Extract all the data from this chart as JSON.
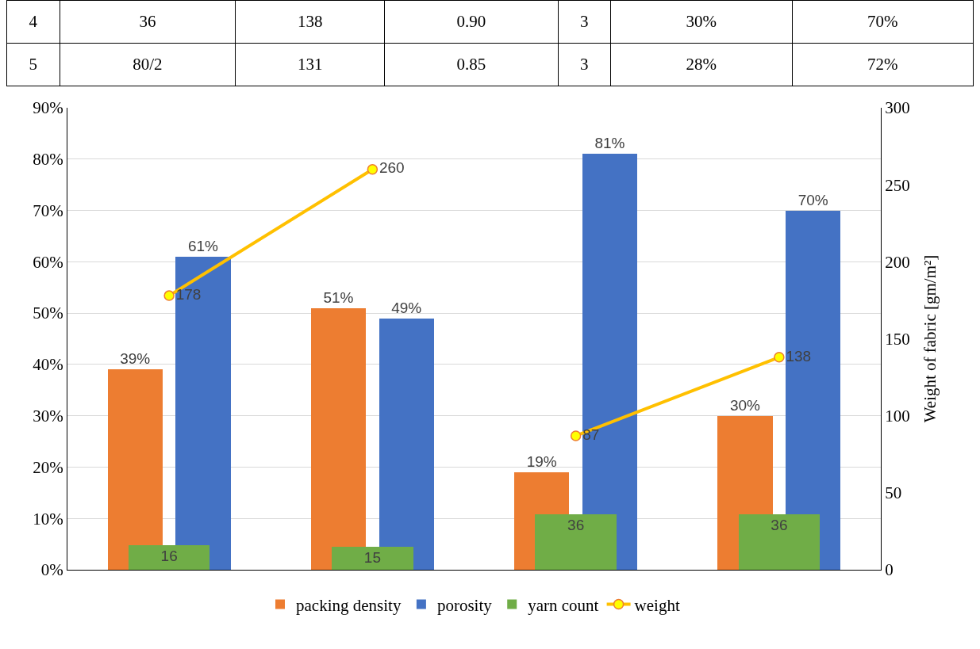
{
  "chart_data": [
    {
      "type": "other",
      "annotations": [
        "4",
        "36",
        "138",
        "0.90",
        "3",
        "30%",
        "70%",
        "5",
        "80/2",
        "131",
        "0.85",
        "3",
        "28%",
        "72%"
      ]
    },
    {
      "type": "bar",
      "categories": [
        null,
        null,
        null,
        null
      ],
      "y2label": "Weight of fabric [gm/m²]",
      "ylim": [
        0,
        90
      ],
      "yticks": [
        {
          "value": 0,
          "label": "0%"
        },
        {
          "value": 10,
          "label": "10%"
        },
        {
          "value": 20,
          "label": "20%"
        },
        {
          "value": 30,
          "label": "30%"
        },
        {
          "value": 40,
          "label": "40%"
        },
        {
          "value": 50,
          "label": "50%"
        },
        {
          "value": 60,
          "label": "60%"
        },
        {
          "value": 70,
          "label": "70%"
        },
        {
          "value": 80,
          "label": "80%"
        },
        {
          "value": 90,
          "label": "90%"
        }
      ],
      "y2lim": [
        0,
        300
      ],
      "y2ticks": [
        0,
        50,
        100,
        150,
        200,
        250,
        300
      ],
      "grid": "y",
      "legend": "bottom",
      "marker": "circle",
      "line_style": "solid",
      "series": [
        {
          "name": "packing density",
          "type": "bar",
          "color": "#ed7d31",
          "values": [
            39,
            51,
            19,
            30
          ],
          "value_labels": [
            "39%",
            "51%",
            "19%",
            "30%"
          ]
        },
        {
          "name": "porosity",
          "type": "bar",
          "color": "#4472c4",
          "values": [
            61,
            49,
            81,
            70
          ],
          "value_labels": [
            "61%",
            "49%",
            "81%",
            "70%"
          ]
        },
        {
          "name": "yarn count",
          "type": "bar",
          "axis": "y2",
          "color": "#70ad47",
          "values": [
            16,
            15,
            36,
            36
          ],
          "value_labels": [
            "16",
            "15",
            "36",
            "36"
          ]
        },
        {
          "name": "weight",
          "type": "line",
          "axis": "y2",
          "color": "#ffc000",
          "values": [
            178,
            260,
            null,
            null
          ],
          "value_labels": [
            "178",
            "260",
            null,
            null
          ]
        },
        {
          "type": "line",
          "axis": "y2",
          "color": "#ffc000",
          "values": [
            null,
            null,
            87,
            138
          ],
          "value_labels": [
            null,
            null,
            "87",
            "138"
          ]
        }
      ]
    }
  ]
}
